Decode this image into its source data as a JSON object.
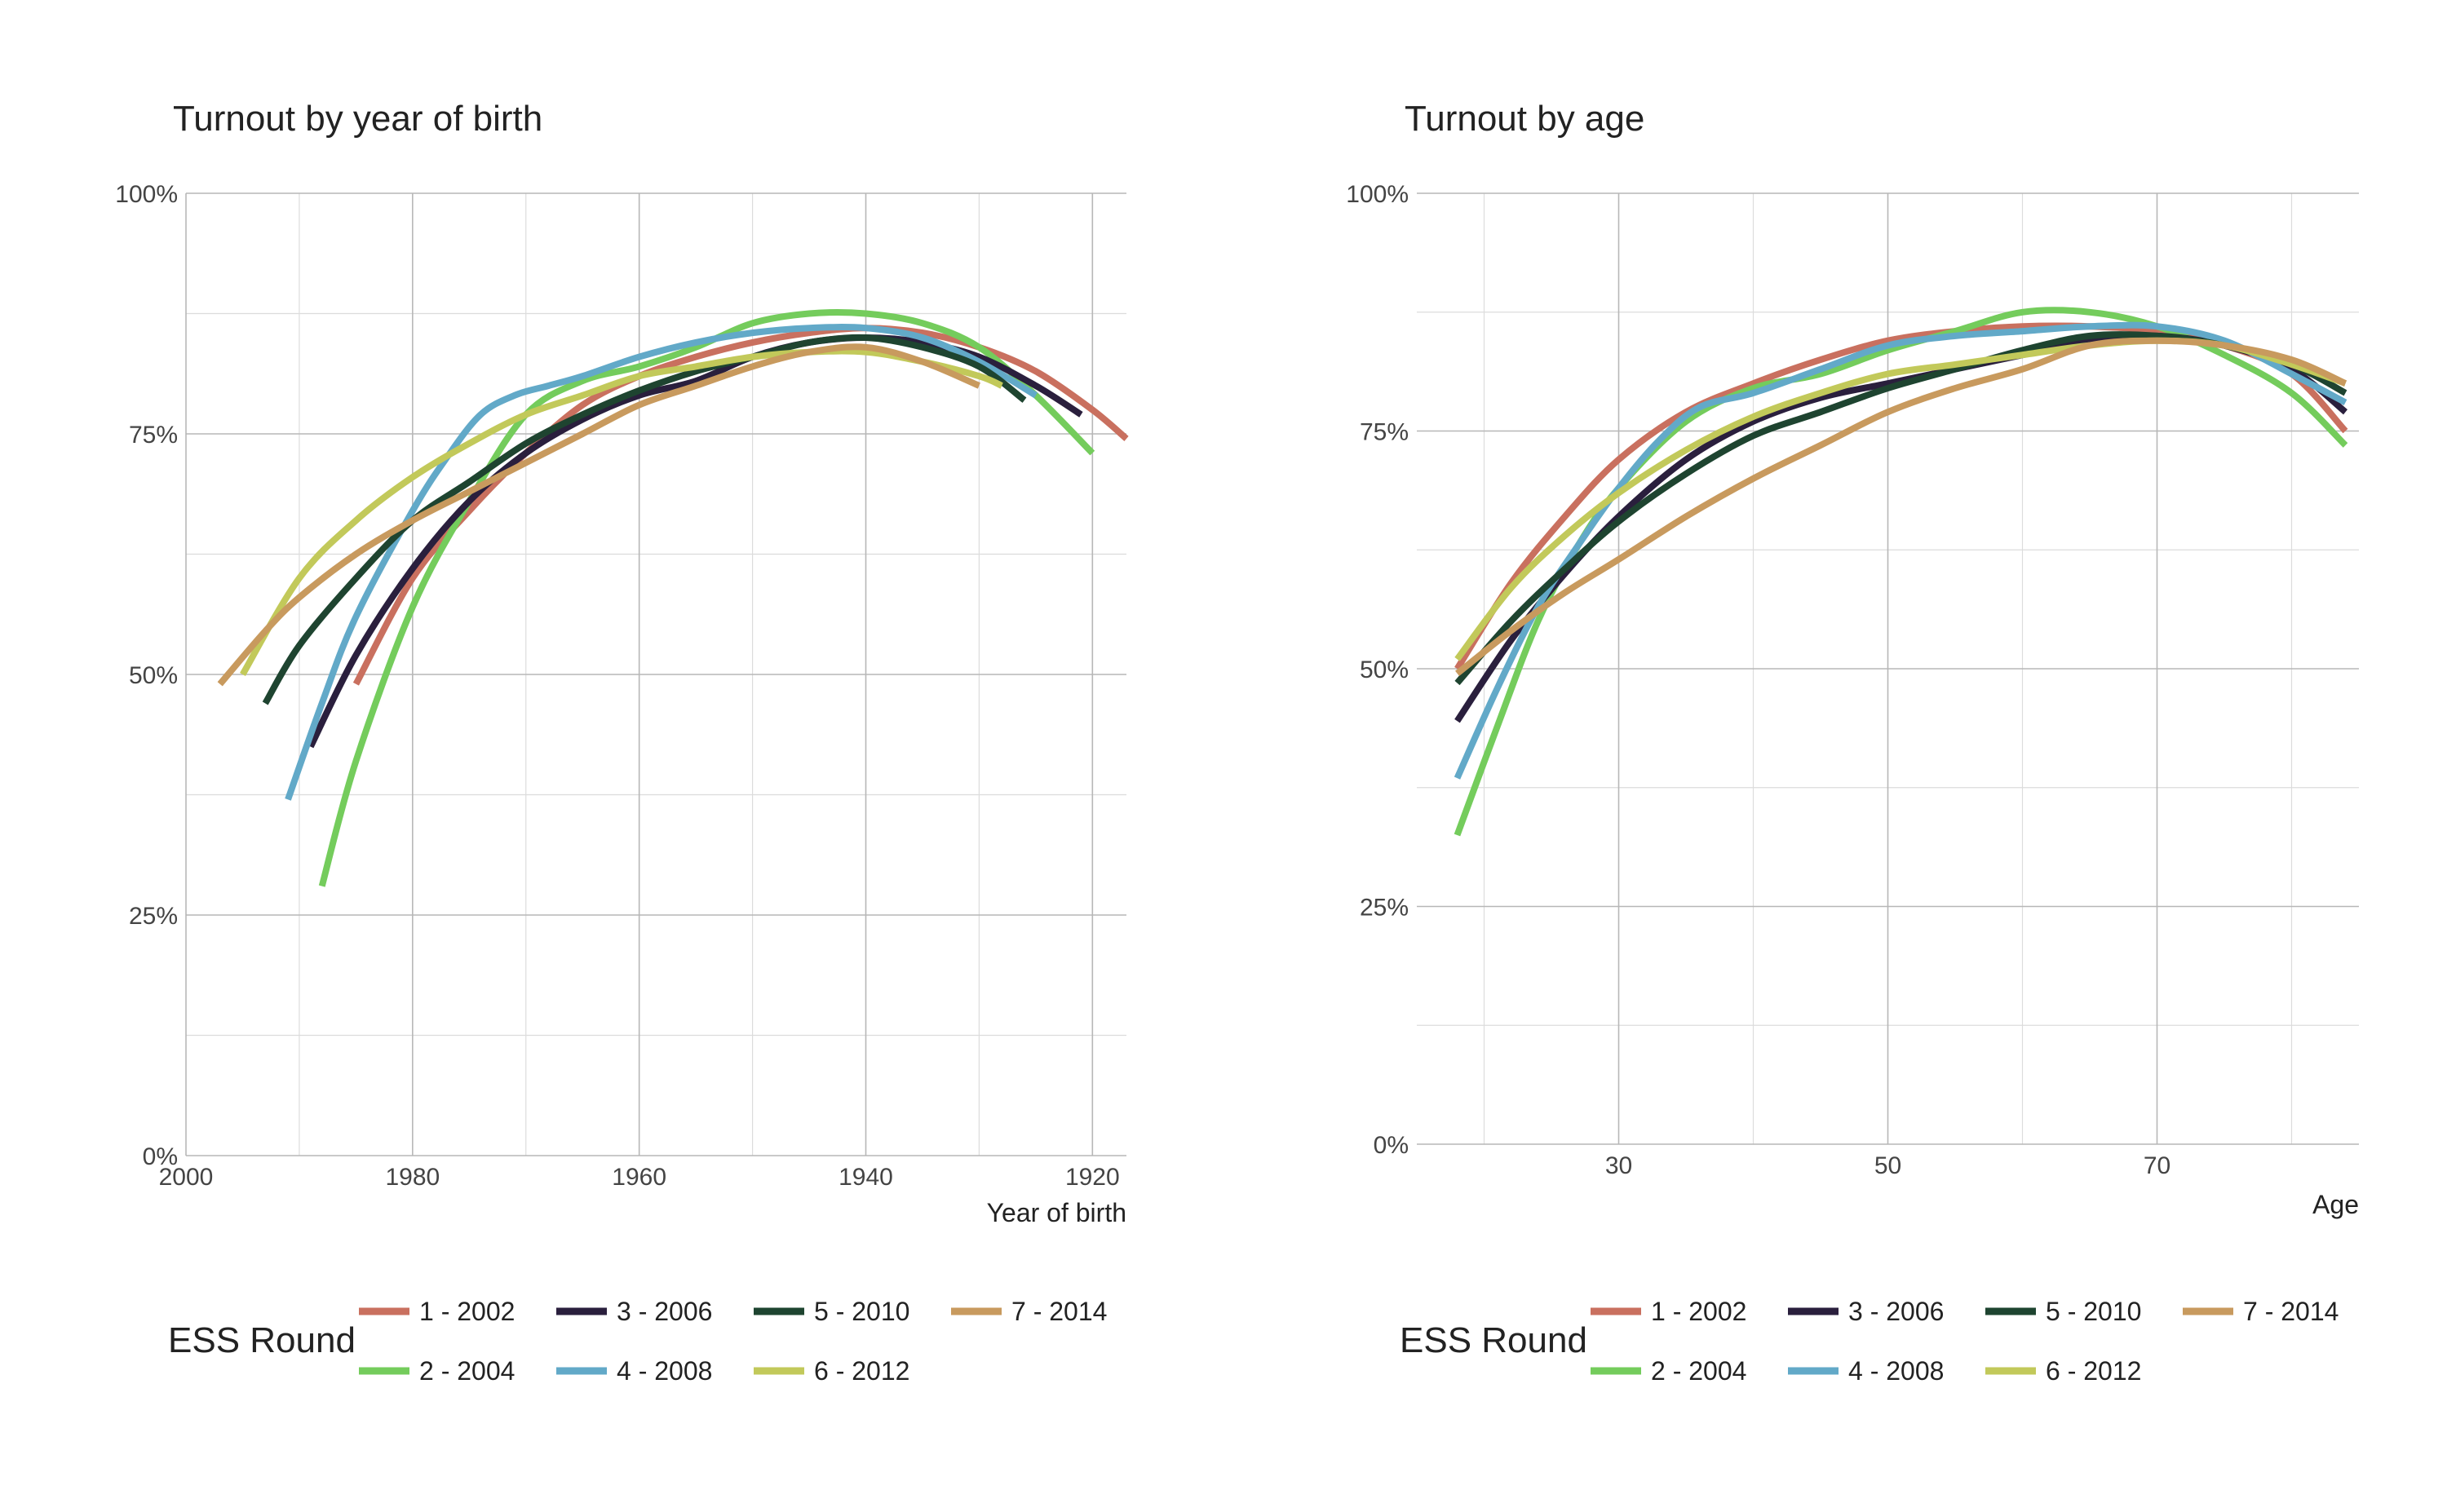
{
  "chart_data": [
    {
      "type": "line",
      "title": "Turnout by year of birth",
      "xlabel": "Year of birth",
      "ylabel": "",
      "x_reversed": true,
      "xlim": [
        2000,
        1917
      ],
      "ylim": [
        0,
        1
      ],
      "x_ticks": [
        2000,
        1980,
        1960,
        1940,
        1920
      ],
      "x_tick_labels": [
        "2000",
        "1980",
        "1960",
        "1940",
        "1920"
      ],
      "y_ticks": [
        0,
        0.25,
        0.5,
        0.75,
        1.0
      ],
      "y_tick_labels": [
        "0%",
        "25%",
        "50%",
        "75%",
        "100%"
      ],
      "grid": true,
      "legend_title": "ESS Round",
      "legend_position": "bottom",
      "series": [
        {
          "name": "1 - 2002",
          "color": "#c9705f",
          "x": [
            1985,
            1980,
            1975,
            1970,
            1965,
            1960,
            1955,
            1950,
            1945,
            1940,
            1935,
            1930,
            1925,
            1920,
            1917
          ],
          "y": [
            0.49,
            0.6,
            0.67,
            0.73,
            0.78,
            0.81,
            0.83,
            0.845,
            0.855,
            0.86,
            0.855,
            0.84,
            0.815,
            0.775,
            0.745
          ]
        },
        {
          "name": "2 - 2004",
          "color": "#74cc5c",
          "x": [
            1988,
            1985,
            1980,
            1975,
            1970,
            1965,
            1960,
            1955,
            1950,
            1945,
            1940,
            1935,
            1930,
            1925,
            1920
          ],
          "y": [
            0.28,
            0.41,
            0.57,
            0.68,
            0.77,
            0.805,
            0.82,
            0.84,
            0.865,
            0.875,
            0.875,
            0.865,
            0.84,
            0.79,
            0.73
          ]
        },
        {
          "name": "3 - 2006",
          "color": "#2a1f3d",
          "x": [
            1989,
            1985,
            1980,
            1975,
            1970,
            1965,
            1960,
            1955,
            1950,
            1945,
            1940,
            1935,
            1930,
            1925,
            1921
          ],
          "y": [
            0.425,
            0.52,
            0.61,
            0.68,
            0.73,
            0.765,
            0.79,
            0.805,
            0.83,
            0.845,
            0.85,
            0.845,
            0.83,
            0.8,
            0.77
          ]
        },
        {
          "name": "4 - 2008",
          "color": "#62a9c8",
          "x": [
            1991,
            1988,
            1985,
            1980,
            1977,
            1974,
            1971,
            1968,
            1965,
            1960,
            1955,
            1950,
            1945,
            1940,
            1935,
            1930,
            1925
          ],
          "y": [
            0.37,
            0.47,
            0.56,
            0.67,
            0.725,
            0.77,
            0.79,
            0.8,
            0.81,
            0.83,
            0.845,
            0.855,
            0.86,
            0.86,
            0.85,
            0.825,
            0.79
          ]
        },
        {
          "name": "5 - 2010",
          "color": "#1e4430",
          "x": [
            1993,
            1990,
            1985,
            1980,
            1975,
            1970,
            1965,
            1960,
            1955,
            1950,
            1945,
            1940,
            1935,
            1930,
            1926
          ],
          "y": [
            0.47,
            0.53,
            0.6,
            0.66,
            0.7,
            0.74,
            0.77,
            0.795,
            0.815,
            0.83,
            0.845,
            0.85,
            0.84,
            0.82,
            0.785
          ]
        },
        {
          "name": "6 - 2012",
          "color": "#c2c95a",
          "x": [
            1995,
            1990,
            1985,
            1980,
            1975,
            1970,
            1965,
            1960,
            1955,
            1950,
            1945,
            1940,
            1935,
            1930,
            1928
          ],
          "y": [
            0.5,
            0.6,
            0.66,
            0.705,
            0.74,
            0.77,
            0.79,
            0.81,
            0.82,
            0.83,
            0.835,
            0.835,
            0.825,
            0.81,
            0.8
          ]
        },
        {
          "name": "7 - 2014",
          "color": "#c89a5e",
          "x": [
            1997,
            1993,
            1990,
            1985,
            1980,
            1975,
            1970,
            1965,
            1960,
            1955,
            1950,
            1945,
            1940,
            1935,
            1930
          ],
          "y": [
            0.49,
            0.545,
            0.58,
            0.625,
            0.66,
            0.69,
            0.72,
            0.75,
            0.78,
            0.8,
            0.82,
            0.835,
            0.84,
            0.825,
            0.8
          ]
        }
      ]
    },
    {
      "type": "line",
      "title": "Turnout by age",
      "xlabel": "Age",
      "ylabel": "",
      "x_reversed": false,
      "xlim": [
        15,
        85
      ],
      "ylim": [
        0,
        1
      ],
      "x_ticks": [
        30,
        50,
        70
      ],
      "x_tick_labels": [
        "30",
        "50",
        "70"
      ],
      "y_ticks": [
        0,
        0.25,
        0.5,
        0.75,
        1.0
      ],
      "y_tick_labels": [
        "0%",
        "25%",
        "50%",
        "75%",
        "100%"
      ],
      "grid": true,
      "legend_title": "ESS Round",
      "legend_position": "bottom",
      "series": [
        {
          "name": "1 - 2002",
          "color": "#c9705f",
          "x": [
            18,
            22,
            26,
            30,
            35,
            40,
            45,
            50,
            55,
            60,
            65,
            70,
            75,
            80,
            84
          ],
          "y": [
            0.5,
            0.59,
            0.66,
            0.72,
            0.77,
            0.8,
            0.825,
            0.845,
            0.855,
            0.86,
            0.86,
            0.855,
            0.84,
            0.81,
            0.75
          ]
        },
        {
          "name": "2 - 2004",
          "color": "#74cc5c",
          "x": [
            18,
            21,
            24,
            27,
            30,
            35,
            40,
            45,
            50,
            55,
            60,
            65,
            70,
            75,
            80,
            84
          ],
          "y": [
            0.325,
            0.44,
            0.55,
            0.63,
            0.69,
            0.76,
            0.795,
            0.81,
            0.835,
            0.855,
            0.875,
            0.875,
            0.86,
            0.83,
            0.79,
            0.735
          ]
        },
        {
          "name": "3 - 2006",
          "color": "#2a1f3d",
          "x": [
            18,
            22,
            26,
            30,
            35,
            40,
            45,
            50,
            55,
            60,
            65,
            70,
            75,
            80,
            84
          ],
          "y": [
            0.445,
            0.53,
            0.6,
            0.66,
            0.72,
            0.76,
            0.785,
            0.8,
            0.815,
            0.83,
            0.845,
            0.85,
            0.84,
            0.815,
            0.77
          ]
        },
        {
          "name": "4 - 2008",
          "color": "#62a9c8",
          "x": [
            18,
            21,
            24,
            27,
            30,
            33,
            36,
            40,
            45,
            50,
            55,
            60,
            65,
            70,
            75,
            80,
            84
          ],
          "y": [
            0.385,
            0.48,
            0.565,
            0.63,
            0.69,
            0.74,
            0.775,
            0.79,
            0.815,
            0.84,
            0.85,
            0.855,
            0.86,
            0.86,
            0.845,
            0.81,
            0.78
          ]
        },
        {
          "name": "5 - 2010",
          "color": "#1e4430",
          "x": [
            18,
            22,
            26,
            30,
            35,
            40,
            45,
            50,
            55,
            60,
            65,
            70,
            75,
            80,
            84
          ],
          "y": [
            0.485,
            0.55,
            0.605,
            0.655,
            0.705,
            0.745,
            0.77,
            0.795,
            0.815,
            0.835,
            0.85,
            0.85,
            0.84,
            0.82,
            0.79
          ]
        },
        {
          "name": "6 - 2012",
          "color": "#c2c95a",
          "x": [
            18,
            22,
            26,
            30,
            35,
            40,
            45,
            50,
            55,
            60,
            65,
            70,
            75,
            80,
            84
          ],
          "y": [
            0.51,
            0.585,
            0.64,
            0.685,
            0.73,
            0.765,
            0.79,
            0.81,
            0.82,
            0.83,
            0.84,
            0.845,
            0.84,
            0.82,
            0.8
          ]
        },
        {
          "name": "7 - 2014",
          "color": "#c89a5e",
          "x": [
            18,
            22,
            26,
            30,
            35,
            40,
            45,
            50,
            55,
            60,
            65,
            70,
            75,
            80,
            84
          ],
          "y": [
            0.495,
            0.54,
            0.58,
            0.615,
            0.66,
            0.7,
            0.735,
            0.77,
            0.795,
            0.815,
            0.84,
            0.845,
            0.84,
            0.825,
            0.8
          ]
        }
      ]
    }
  ]
}
